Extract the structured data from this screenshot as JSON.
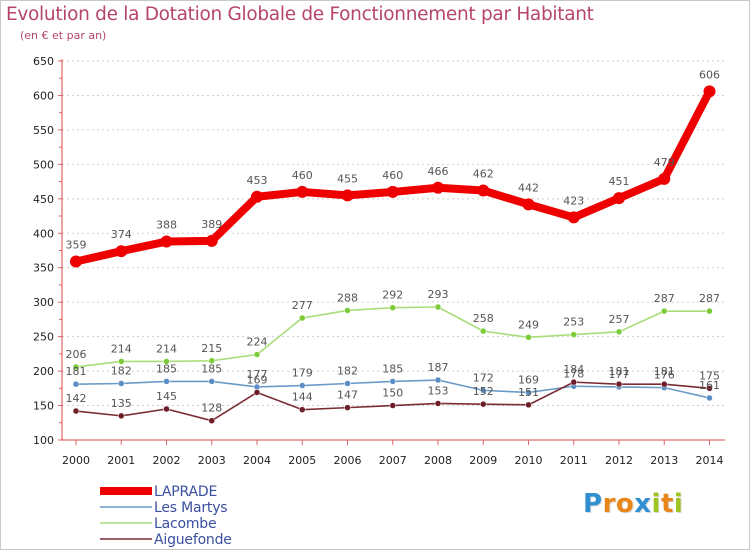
{
  "header": {
    "title": "Evolution de la Dotation Globale de Fonctionnement par Habitant",
    "subtitle": "(en € et par an)"
  },
  "logo": {
    "letters": [
      "P",
      "r",
      "o",
      "x",
      "i",
      "t",
      "i"
    ],
    "colors": [
      "#2f8fd0",
      "#e8861a",
      "#e8861a",
      "#2f8fd0",
      "#9fc421",
      "#e8861a",
      "#9fc421"
    ]
  },
  "chart_data": {
    "type": "line",
    "title": "Evolution de la Dotation Globale de Fonctionnement par Habitant",
    "subtitle": "(en € et par an)",
    "xlabel": "",
    "ylabel": "",
    "x": [
      "2000",
      "2001",
      "2002",
      "2003",
      "2004",
      "2005",
      "2006",
      "2007",
      "2008",
      "2009",
      "2010",
      "2011",
      "2012",
      "2013",
      "2014"
    ],
    "ylim": [
      100,
      650
    ],
    "yticks": [
      100,
      150,
      200,
      250,
      300,
      350,
      400,
      450,
      500,
      550,
      600,
      650
    ],
    "grid": "horizontal dashed",
    "legend_position": "bottom-left",
    "series": [
      {
        "name": "LAPRADE",
        "color": "#ee0000",
        "emphasis": "bold",
        "values": [
          359,
          374,
          388,
          389,
          453,
          460,
          455,
          460,
          466,
          462,
          442,
          423,
          451,
          479,
          606
        ],
        "labels": [
          "359",
          "374",
          "388",
          "389",
          "453",
          "460",
          "455",
          "460",
          "466",
          "462",
          "442",
          "423",
          "451",
          "479",
          "606"
        ]
      },
      {
        "name": "Les Martys",
        "color": "#6b9ac6",
        "marker": "#5b8ec4",
        "values": [
          181,
          182,
          185,
          185,
          177,
          179,
          182,
          185,
          187,
          172,
          169,
          178,
          177,
          176,
          161
        ],
        "labels": [
          "181",
          "182",
          "185",
          "185",
          "177",
          "179",
          "182",
          "185",
          "187",
          "172",
          "169",
          "178",
          "177",
          "176",
          "161"
        ]
      },
      {
        "name": "Lacombe",
        "color": "#a9dd7a",
        "marker": "#7ccc3a",
        "values": [
          206,
          214,
          214,
          215,
          224,
          277,
          288,
          292,
          293,
          258,
          249,
          253,
          257,
          287,
          287
        ],
        "labels": [
          "206",
          "214",
          "214",
          "215",
          "224",
          "277",
          "288",
          "292",
          "293",
          "258",
          "249",
          "253",
          "257",
          "287",
          "287"
        ]
      },
      {
        "name": "Aiguefonde",
        "color": "#7a2d35",
        "marker": "#6d1e28",
        "values": [
          142,
          135,
          145,
          128,
          169,
          144,
          147,
          150,
          153,
          152,
          151,
          184,
          181,
          181,
          175
        ],
        "labels": [
          "142",
          "135",
          "145",
          "128",
          "169",
          "144",
          "147",
          "150",
          "153",
          "152",
          "151",
          "184",
          "181",
          "181",
          "175"
        ]
      }
    ]
  }
}
